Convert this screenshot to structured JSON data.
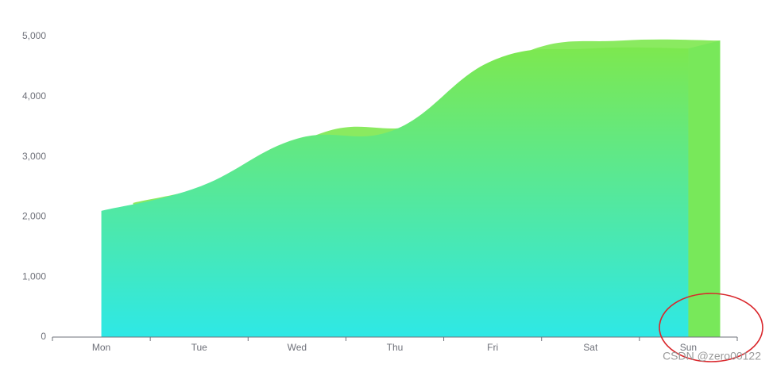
{
  "chart_data": {
    "type": "area",
    "categories": [
      "Mon",
      "Tue",
      "Wed",
      "Thu",
      "Fri",
      "Sat",
      "Sun"
    ],
    "values": [
      2100,
      2500,
      3300,
      3450,
      4600,
      4800,
      4800
    ],
    "colors": {
      "top": "#7de84f",
      "bottom": "#2ee8e6",
      "side": "#78e85a"
    },
    "ylim": [
      0,
      5000
    ],
    "yticks": [
      0,
      {
        "value": 1000,
        "label": "1,000"
      },
      {
        "value": 2000,
        "label": "2,000"
      },
      {
        "value": 3000,
        "label": "3,000"
      },
      {
        "value": 4000,
        "label": "4,000"
      },
      {
        "value": 5000,
        "label": "5,000"
      }
    ],
    "smooth": true
  },
  "watermark": "CSDN @zero00122"
}
